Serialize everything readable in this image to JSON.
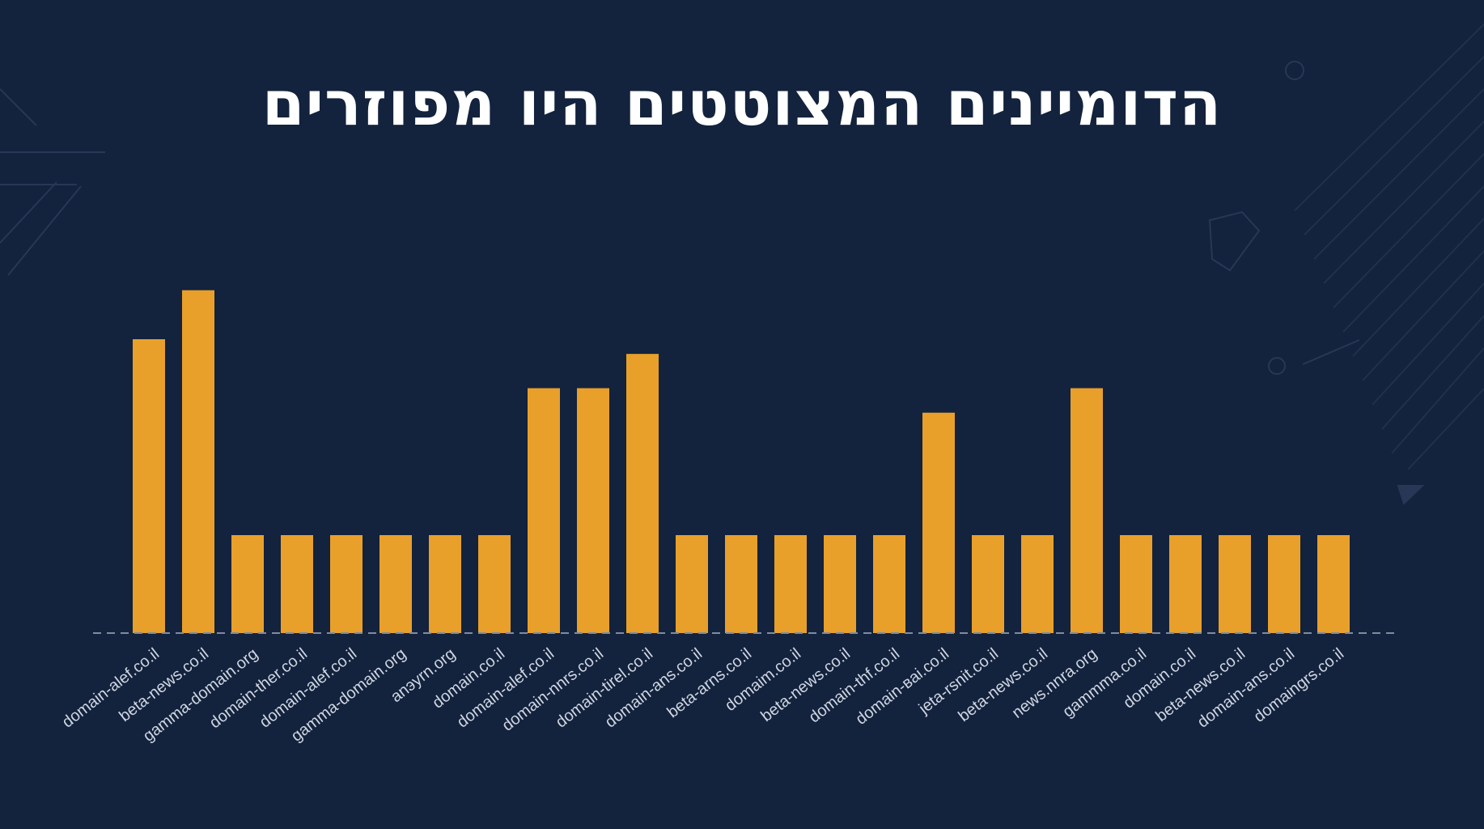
{
  "title": "הדומיינים המצוטטים היו מפוזרים",
  "colors": {
    "background": "#13223d",
    "bar": "#e8a02a",
    "baseline": "#7f8ba0",
    "tick_text": "#cfd6e2",
    "title": "#ffffff"
  },
  "chart_data": {
    "type": "bar",
    "title": "הדומיינים המצוטטים היו מפוזרים",
    "xlabel": "",
    "ylabel": "",
    "ylim": [
      0,
      8
    ],
    "grid": false,
    "categories": [
      "domain-alef.co.il",
      "beta-news.co.il",
      "gamma-domain.org",
      "domain-ther.co.il",
      "domain-alef.co.il",
      "gamma-domain.org",
      "anэyrn.org",
      "domain.co.il",
      "domain-alef.co.il",
      "domain-nnrs.co.il",
      "domain-tirel.co.il",
      "domain-ans.co.il",
      "beta-arns.co.il",
      "domaim.co.il",
      "beta-news.co.il",
      "domain-thf.co.il",
      "domain-вai.co.il",
      "jeta-rsnit.co.il",
      "beta-news.co.il",
      "news.nnra.org",
      "gammma.co.il",
      "domain.co.il",
      "beta-news.co.il",
      "domain-ans.co.il",
      "domaingrs.co.il"
    ],
    "values": [
      6,
      7,
      2,
      2,
      2,
      2,
      2,
      2,
      5,
      5,
      5.7,
      2,
      2,
      2,
      2,
      2,
      4.5,
      2,
      2,
      5,
      2,
      2,
      2,
      2,
      2
    ]
  }
}
